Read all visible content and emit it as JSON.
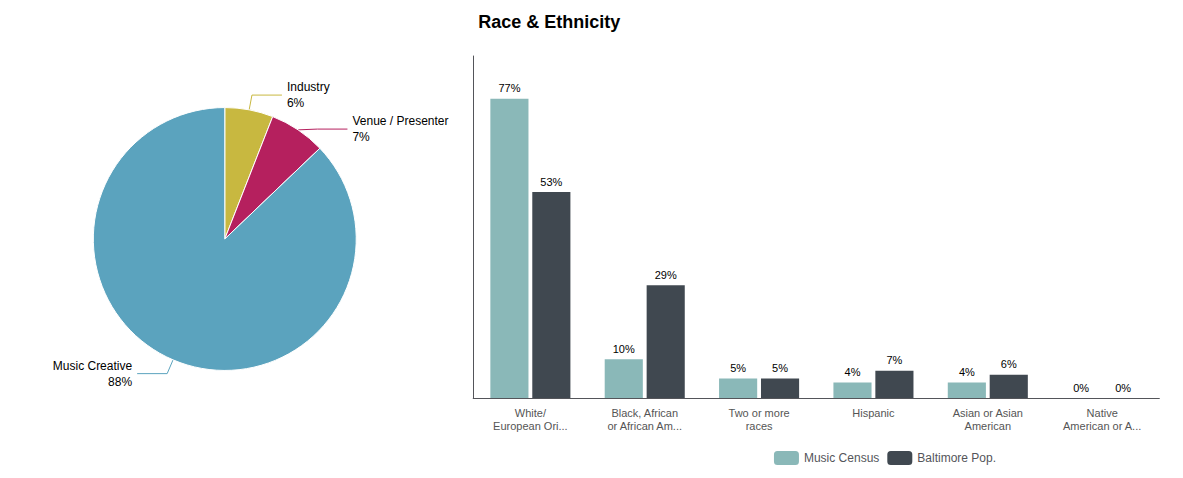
{
  "chart_data": [
    {
      "type": "pie",
      "categories": [
        "Industry",
        "Venue / Presenter",
        "Music Creative"
      ],
      "values": [
        6,
        7,
        88
      ],
      "value_labels": [
        "6%",
        "7%",
        "88%"
      ],
      "colors": [
        "#c8b840",
        "#b5205e",
        "#5ba3be"
      ],
      "data_labels": true
    },
    {
      "type": "bar",
      "title": "Race & Ethnicity",
      "categories": [
        "White/\nEuropean Ori...",
        "Black, African\nor African Am...",
        "Two or more\nraces",
        "Hispanic",
        "Asian or Asian\nAmerican",
        "Native\nAmerican or A..."
      ],
      "series": [
        {
          "name": "Music Census",
          "color": "#8ab8b8",
          "values": [
            77,
            10,
            5,
            4,
            4,
            0
          ],
          "value_labels": [
            "77%",
            "10%",
            "5%",
            "4%",
            "4%",
            "0%"
          ]
        },
        {
          "name": "Baltimore Pop.",
          "color": "#404850",
          "values": [
            53,
            29,
            5,
            7,
            6,
            0
          ],
          "value_labels": [
            "53%",
            "29%",
            "5%",
            "7%",
            "6%",
            "0%"
          ]
        }
      ],
      "ylim": [
        0,
        88
      ],
      "tick_labels": "x",
      "grid": false,
      "legend": "bottom",
      "data_labels": true
    }
  ]
}
